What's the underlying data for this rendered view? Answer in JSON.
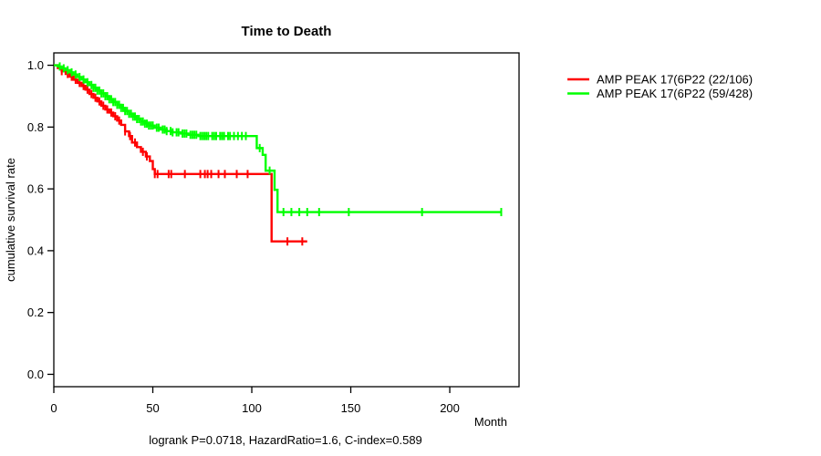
{
  "chart_data": {
    "type": "line",
    "subtype": "kaplan-meier-step-survival",
    "title": "Time to Death",
    "xlabel": "Month",
    "ylabel": "cumulative survival rate",
    "annotation": "logrank P=0.0718, HazardRatio=1.6, C-index=0.589",
    "xlim": [
      0,
      235
    ],
    "ylim": [
      0,
      1
    ],
    "x_ticks": [
      {
        "v": 0,
        "label": "0"
      },
      {
        "v": 50,
        "label": "50"
      },
      {
        "v": 100,
        "label": "100"
      },
      {
        "v": 150,
        "label": "150"
      },
      {
        "v": 200,
        "label": "200"
      }
    ],
    "y_ticks": [
      {
        "v": 0.0,
        "label": "0.0"
      },
      {
        "v": 0.2,
        "label": "0.2"
      },
      {
        "v": 0.4,
        "label": "0.4"
      },
      {
        "v": 0.6,
        "label": "0.6"
      },
      {
        "v": 0.8,
        "label": "0.8"
      },
      {
        "v": 1.0,
        "label": "1.0"
      }
    ],
    "legend_position": "right-outside",
    "grid": false,
    "series": [
      {
        "name": "AMP PEAK 17(6P22 (22/106)",
        "events": "22/106",
        "color": "#ff0000",
        "end_month": 128,
        "steps": [
          [
            0,
            1.0
          ],
          [
            2,
            0.991
          ],
          [
            4,
            0.981
          ],
          [
            6,
            0.972
          ],
          [
            8,
            0.963
          ],
          [
            10,
            0.953
          ],
          [
            12,
            0.943
          ],
          [
            14,
            0.933
          ],
          [
            16,
            0.921
          ],
          [
            18,
            0.907
          ],
          [
            20,
            0.895
          ],
          [
            22,
            0.883
          ],
          [
            24,
            0.869
          ],
          [
            26,
            0.857
          ],
          [
            28,
            0.847
          ],
          [
            30,
            0.835
          ],
          [
            32,
            0.821
          ],
          [
            34,
            0.807
          ],
          [
            36,
            0.786
          ],
          [
            38,
            0.771
          ],
          [
            39.5,
            0.75
          ],
          [
            42,
            0.735
          ],
          [
            44,
            0.72
          ],
          [
            46.5,
            0.705
          ],
          [
            48.5,
            0.69
          ],
          [
            50,
            0.664
          ],
          [
            51,
            0.648
          ],
          [
            110,
            0.43
          ]
        ],
        "censor_months": [
          4,
          7,
          9,
          11,
          13,
          15,
          17,
          19,
          21,
          23,
          25,
          27,
          29,
          31,
          33,
          36,
          38.5,
          41,
          45,
          47,
          51,
          52.4,
          58,
          59.3,
          66.2,
          74,
          76.3,
          77.7,
          79.5,
          83.2,
          86.4,
          92.4,
          97.9,
          118,
          125.5
        ]
      },
      {
        "name": "AMP PEAK 17(6P22 (59/428)",
        "events": "59/428",
        "color": "#00ff00",
        "end_month": 226,
        "steps": [
          [
            0,
            1.0
          ],
          [
            2,
            0.996
          ],
          [
            4,
            0.99
          ],
          [
            6,
            0.984
          ],
          [
            8,
            0.977
          ],
          [
            10,
            0.97
          ],
          [
            12,
            0.962
          ],
          [
            14,
            0.954
          ],
          [
            16,
            0.945
          ],
          [
            18,
            0.936
          ],
          [
            20,
            0.927
          ],
          [
            22,
            0.918
          ],
          [
            24,
            0.909
          ],
          [
            26,
            0.9
          ],
          [
            28,
            0.89
          ],
          [
            30,
            0.881
          ],
          [
            32,
            0.872
          ],
          [
            34,
            0.862
          ],
          [
            36,
            0.852
          ],
          [
            38,
            0.843
          ],
          [
            40,
            0.834
          ],
          [
            42,
            0.826
          ],
          [
            44,
            0.818
          ],
          [
            46,
            0.811
          ],
          [
            48,
            0.805
          ],
          [
            51,
            0.798
          ],
          [
            54,
            0.792
          ],
          [
            57,
            0.787
          ],
          [
            60,
            0.783
          ],
          [
            64,
            0.779
          ],
          [
            68,
            0.775
          ],
          [
            73,
            0.771
          ],
          [
            102.5,
            0.732
          ],
          [
            105.5,
            0.71
          ],
          [
            107,
            0.659
          ],
          [
            111.5,
            0.597
          ],
          [
            113,
            0.525
          ]
        ],
        "censor_months": [
          3,
          5,
          7,
          9,
          11,
          13,
          15,
          17,
          19,
          20,
          21,
          22,
          23,
          24,
          25,
          26,
          27,
          28,
          29,
          30,
          31,
          32,
          33,
          34,
          35,
          36,
          37,
          38,
          39,
          40,
          41,
          42,
          43,
          44,
          45,
          46,
          47,
          48,
          49,
          50,
          52,
          53,
          55,
          56,
          57,
          59,
          60,
          62,
          63,
          65,
          66,
          67,
          69,
          70,
          71,
          72,
          74,
          75,
          76,
          77,
          78,
          80,
          81,
          82,
          84,
          85,
          86,
          88,
          89,
          91,
          93,
          95,
          97,
          104,
          109,
          116,
          120,
          124,
          128,
          134,
          149,
          186,
          226
        ]
      }
    ]
  }
}
